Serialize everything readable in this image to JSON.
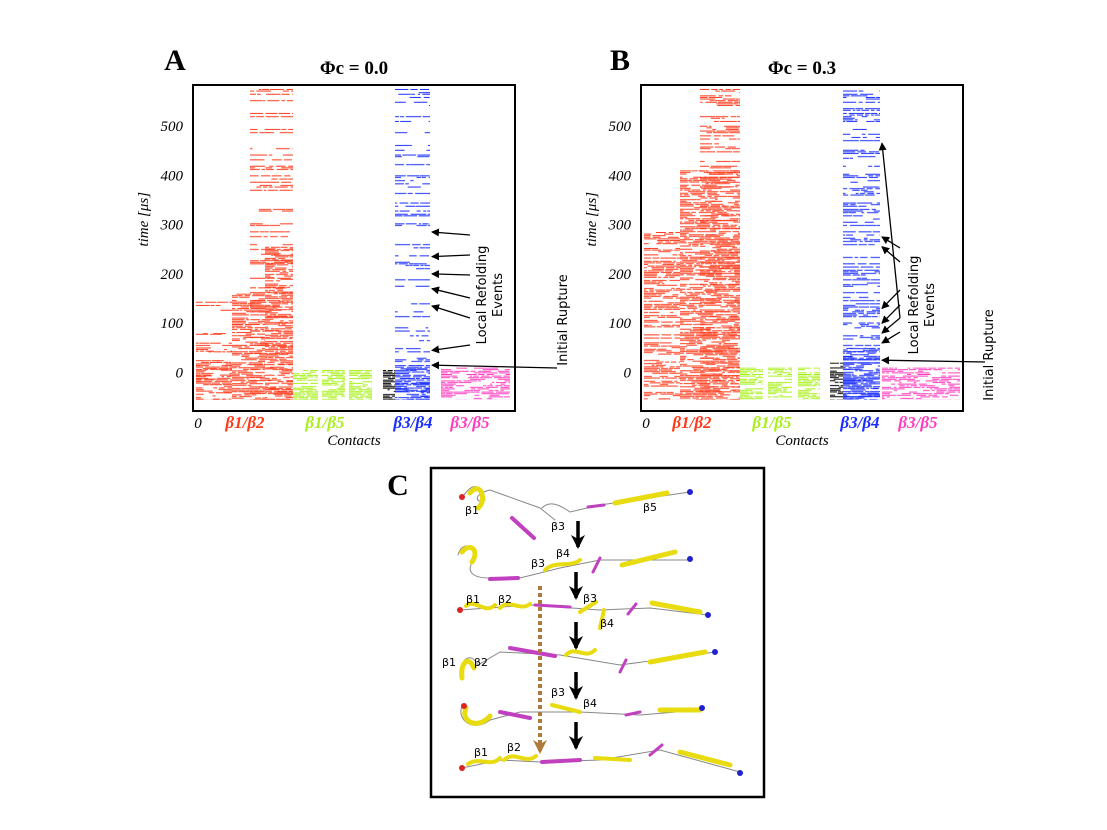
{
  "panel_labels": [
    "A",
    "B",
    "C"
  ],
  "chart_data": [
    {
      "type": "contact-map",
      "title": "Φc = 0.0",
      "y_label": "time [μs]",
      "x_label": "Contacts",
      "categories": [
        "0",
        "β1/β2",
        "β1/β5",
        "β3/β4",
        "β3/β5"
      ],
      "category_colors": [
        "#000000",
        "#ff3a1a",
        "#a8f01a",
        "#1a2eff",
        "#ff3dbf"
      ],
      "ylim": [
        -78,
        583
      ],
      "yticks": [
        0,
        100,
        200,
        300,
        400,
        500
      ],
      "base": -55,
      "columns": [
        {
          "color": "#ff3a1a",
          "top": 25,
          "density": 1
        },
        {
          "color": "#ff3a1a",
          "top": 80,
          "density": 0.35
        },
        {
          "color": "#ff3a1a",
          "top": 150,
          "density": 0.15
        },
        {
          "color": "#ff3a1a",
          "top": 160,
          "density": 1
        },
        {
          "color": "#ff3a1a",
          "top": 255,
          "density": 1
        },
        {
          "color": "#ff3a1a",
          "top": 575,
          "density": 0.3
        },
        {
          "color": "#a8f01a",
          "top": 5,
          "density": 1
        },
        {
          "color": "#a8f01a",
          "top": 5,
          "density": 1
        },
        {
          "color": "#a8f01a",
          "top": 5,
          "density": 1
        },
        {
          "color": "#000000",
          "top": 5,
          "density": 1
        },
        {
          "color": "#1a2eff",
          "top": 15,
          "density": 1
        },
        {
          "color": "#1a2eff",
          "top": 575,
          "density": 0.3
        },
        {
          "color": "#ff3dbf",
          "top": 10,
          "density": 1
        }
      ],
      "annotations": [
        {
          "lines": [
            "Local Refolding",
            "Events"
          ],
          "times": [
            45,
            135,
            170,
            200,
            235,
            285
          ]
        },
        {
          "lines": [
            "Initial Rupture"
          ],
          "times": [
            15
          ]
        }
      ]
    },
    {
      "type": "contact-map",
      "title": "Φc = 0.3",
      "y_label": "time [μs]",
      "x_label": "Contacts",
      "categories": [
        "0",
        "β1/β2",
        "β1/β5",
        "β3/β4",
        "β3/β5"
      ],
      "category_colors": [
        "#000000",
        "#ff3a1a",
        "#a8f01a",
        "#1a2eff",
        "#ff3dbf"
      ],
      "ylim": [
        -78,
        583
      ],
      "yticks": [
        0,
        100,
        200,
        300,
        400,
        500
      ],
      "base": -55,
      "columns": [
        {
          "color": "#ff3a1a",
          "top": 285,
          "density": 0.75
        },
        {
          "color": "#ff3a1a",
          "top": 410,
          "density": 1
        },
        {
          "color": "#ff3a1a",
          "top": 575,
          "density": 0.4
        },
        {
          "color": "#a8f01a",
          "top": 10,
          "density": 1
        },
        {
          "color": "#a8f01a",
          "top": 10,
          "density": 1
        },
        {
          "color": "#a8f01a",
          "top": 10,
          "density": 1
        },
        {
          "color": "#000000",
          "top": 20,
          "density": 1
        },
        {
          "color": "#1a2eff",
          "top": 50,
          "density": 1
        },
        {
          "color": "#1a2eff",
          "top": 575,
          "density": 0.45
        },
        {
          "color": "#ff3dbf",
          "top": 10,
          "density": 1
        }
      ],
      "annotations": [
        {
          "lines": [
            "Local Refolding",
            "Events"
          ],
          "times": [
            60,
            80,
            100,
            130,
            255,
            275,
            465
          ]
        },
        {
          "lines": [
            "Initial Rupture"
          ],
          "times": [
            25
          ]
        }
      ]
    }
  ],
  "structure_labels": [
    "β1",
    "β3",
    "β5",
    "β3",
    "β4",
    "β1",
    "β2",
    "β3",
    "β4",
    "β1",
    "β2",
    "β3",
    "β4",
    "β1",
    "β2"
  ]
}
